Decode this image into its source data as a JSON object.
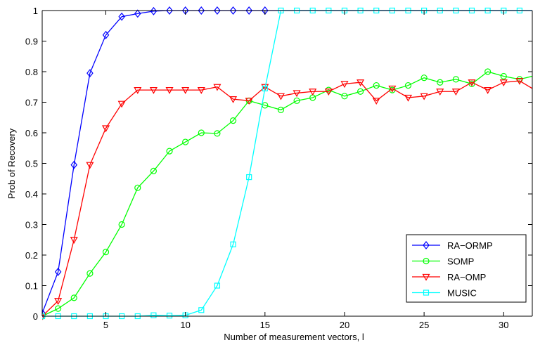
{
  "chart_data": {
    "type": "line",
    "title": "",
    "xlabel": "Number of measurement vectors, l",
    "ylabel": "Prob of Recovery",
    "xlim": [
      1,
      31.8
    ],
    "ylim": [
      0,
      1
    ],
    "xticks": [
      5,
      10,
      15,
      20,
      25,
      30
    ],
    "yticks": [
      0,
      0.1,
      0.2,
      0.3,
      0.4,
      0.5,
      0.6,
      0.7,
      0.8,
      0.9,
      1
    ],
    "grid": false,
    "legend_position": "bottom-right",
    "series": [
      {
        "name": "RA−ORMP",
        "color": "#0000ff",
        "marker": "diamond",
        "x": [
          1,
          2,
          3,
          4,
          5,
          6,
          7,
          8,
          9,
          10,
          11,
          12,
          13,
          14,
          15
        ],
        "y": [
          0.01,
          0.145,
          0.495,
          0.795,
          0.92,
          0.98,
          0.99,
          0.998,
          1,
          1,
          1,
          1,
          1,
          1,
          1
        ],
        "line_to_x": 31.8,
        "line_to_y": 1
      },
      {
        "name": "SOMP",
        "color": "#00ff00",
        "marker": "circle",
        "x": [
          1,
          2,
          3,
          4,
          5,
          6,
          7,
          8,
          9,
          10,
          11,
          12,
          13,
          14,
          15,
          16,
          17,
          18,
          19,
          20,
          21,
          22,
          23,
          24,
          25,
          26,
          27,
          28,
          29,
          30,
          31
        ],
        "y": [
          0,
          0.025,
          0.06,
          0.14,
          0.21,
          0.3,
          0.42,
          0.475,
          0.54,
          0.57,
          0.6,
          0.598,
          0.64,
          0.705,
          0.69,
          0.675,
          0.705,
          0.715,
          0.74,
          0.72,
          0.735,
          0.755,
          0.74,
          0.755,
          0.78,
          0.765,
          0.775,
          0.76,
          0.8,
          0.785,
          0.775
        ],
        "line_to_x": 31.8,
        "line_to_y": 0.785
      },
      {
        "name": "RA−OMP",
        "color": "#ff0000",
        "marker": "triangle-down",
        "x": [
          1,
          2,
          3,
          4,
          5,
          6,
          7,
          8,
          9,
          10,
          11,
          12,
          13,
          14,
          15,
          16,
          17,
          18,
          19,
          20,
          21,
          22,
          23,
          24,
          25,
          26,
          27,
          28,
          29,
          30,
          31
        ],
        "y": [
          0,
          0.05,
          0.25,
          0.495,
          0.615,
          0.695,
          0.74,
          0.74,
          0.74,
          0.74,
          0.74,
          0.75,
          0.71,
          0.705,
          0.75,
          0.72,
          0.73,
          0.735,
          0.735,
          0.76,
          0.765,
          0.705,
          0.745,
          0.715,
          0.72,
          0.735,
          0.735,
          0.765,
          0.74,
          0.765,
          0.77
        ],
        "line_to_x": 31.8,
        "line_to_y": 0.745
      },
      {
        "name": "MUSIC",
        "color": "#00ffff",
        "marker": "square",
        "x": [
          1,
          2,
          3,
          4,
          5,
          6,
          7,
          8,
          9,
          10,
          11,
          12,
          13,
          14,
          15,
          16,
          17,
          18,
          19,
          20,
          21,
          22,
          23,
          24,
          25,
          26,
          27,
          28,
          29,
          30,
          31
        ],
        "y": [
          0,
          0,
          0,
          0,
          0,
          0,
          0,
          0.003,
          0.002,
          0.003,
          0.02,
          0.1,
          0.235,
          0.455,
          0.745,
          1,
          1,
          1,
          1,
          1,
          1,
          1,
          1,
          1,
          1,
          1,
          1,
          1,
          1,
          1,
          1
        ],
        "line_to_x": 31.8,
        "line_to_y": 1
      }
    ]
  }
}
